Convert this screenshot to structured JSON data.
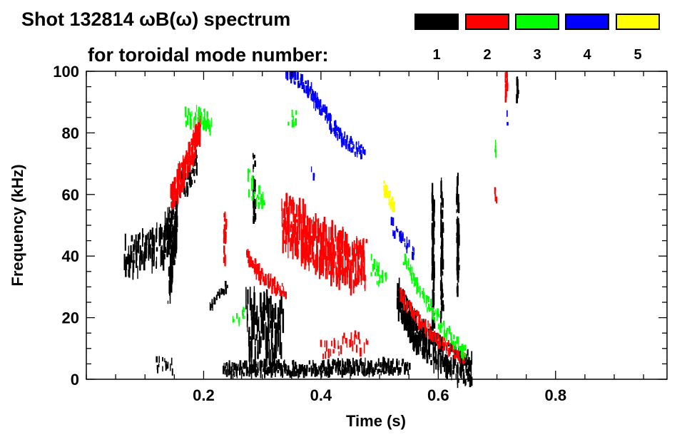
{
  "chart_data": {
    "type": "heatmap",
    "title": "Shot 132814 ωB(ω) spectrum",
    "subtitle": "for toroidal mode number:",
    "xlabel": "Time (s)",
    "ylabel": "Frequency (kHz)",
    "xlim": [
      0,
      0.99
    ],
    "ylim": [
      0,
      100
    ],
    "xticks": [
      0.2,
      0.4,
      0.6,
      0.8
    ],
    "xtick_labels": [
      "0.2",
      "0.4",
      "0.6",
      "0.8"
    ],
    "yticks": [
      0,
      20,
      40,
      60,
      80,
      100
    ],
    "ytick_labels": [
      "0",
      "20",
      "40",
      "60",
      "80",
      "100"
    ],
    "x_minor_step": 0.05,
    "y_minor_step": 5,
    "grid": false,
    "legend_placement": "top-right",
    "legend": [
      {
        "mode": "1",
        "color": "#000000"
      },
      {
        "mode": "2",
        "color": "#ff0000"
      },
      {
        "mode": "3",
        "color": "#00ff00"
      },
      {
        "mode": "4",
        "color": "#0000ff"
      },
      {
        "mode": "5",
        "color": "#ffff00"
      }
    ],
    "features": [
      {
        "mode": 1,
        "path": [
          [
            0.065,
            40
          ],
          [
            0.1,
            41
          ],
          [
            0.13,
            44
          ],
          [
            0.148,
            52
          ]
        ],
        "spread": 6,
        "density": 3
      },
      {
        "mode": 1,
        "path": [
          [
            0.14,
            30
          ],
          [
            0.15,
            45
          ],
          [
            0.152,
            56
          ]
        ],
        "spread": 5,
        "density": 2
      },
      {
        "mode": 1,
        "path": [
          [
            0.16,
            63
          ],
          [
            0.175,
            65
          ],
          [
            0.19,
            70
          ]
        ],
        "spread": 4,
        "density": 2
      },
      {
        "mode": 1,
        "path": [
          [
            0.273,
            17
          ],
          [
            0.3,
            16
          ],
          [
            0.334,
            15
          ]
        ],
        "spread": 10,
        "density": 4
      },
      {
        "mode": 1,
        "path": [
          [
            0.232,
            3
          ],
          [
            0.3,
            3.5
          ],
          [
            0.4,
            3.5
          ],
          [
            0.5,
            4
          ],
          [
            0.55,
            4
          ]
        ],
        "spread": 2,
        "density": 3
      },
      {
        "mode": 1,
        "path": [
          [
            0.53,
            27
          ],
          [
            0.56,
            15
          ],
          [
            0.6,
            8
          ],
          [
            0.656,
            2
          ]
        ],
        "spread": 5,
        "density": 4
      },
      {
        "mode": 1,
        "path": [
          [
            0.285,
            52
          ],
          [
            0.285,
            73
          ]
        ],
        "spread": 2,
        "density": 1
      },
      {
        "mode": 1,
        "path": [
          [
            0.59,
            20
          ],
          [
            0.59,
            60
          ]
        ],
        "spread": 4,
        "density": 1
      },
      {
        "mode": 1,
        "path": [
          [
            0.605,
            22
          ],
          [
            0.605,
            62
          ]
        ],
        "spread": 4,
        "density": 1
      },
      {
        "mode": 1,
        "path": [
          [
            0.632,
            30
          ],
          [
            0.632,
            62
          ]
        ],
        "spread": 4,
        "density": 1
      },
      {
        "mode": 1,
        "path": [
          [
            0.117,
            5
          ],
          [
            0.148,
            4
          ]
        ],
        "spread": 2,
        "density": 1
      },
      {
        "mode": 1,
        "path": [
          [
            0.21,
            24
          ],
          [
            0.24,
            30
          ]
        ],
        "spread": 2,
        "density": 1
      },
      {
        "mode": 1,
        "path": [
          [
            0.733,
            90
          ],
          [
            0.735,
            98
          ]
        ],
        "spread": 3,
        "density": 1
      },
      {
        "mode": 2,
        "path": [
          [
            0.144,
            58
          ],
          [
            0.165,
            68
          ],
          [
            0.18,
            74
          ],
          [
            0.194,
            83
          ]
        ],
        "spread": 4,
        "density": 3
      },
      {
        "mode": 2,
        "path": [
          [
            0.334,
            52
          ],
          [
            0.37,
            47
          ],
          [
            0.41,
            42
          ],
          [
            0.45,
            38
          ],
          [
            0.477,
            38
          ]
        ],
        "spread": 8,
        "density": 5
      },
      {
        "mode": 2,
        "path": [
          [
            0.273,
            40
          ],
          [
            0.3,
            33
          ],
          [
            0.339,
            28
          ]
        ],
        "spread": 2,
        "density": 2
      },
      {
        "mode": 2,
        "path": [
          [
            0.235,
            39
          ],
          [
            0.235,
            54
          ]
        ],
        "spread": 2,
        "density": 1
      },
      {
        "mode": 2,
        "path": [
          [
            0.534,
            27
          ],
          [
            0.57,
            18
          ],
          [
            0.61,
            11
          ],
          [
            0.644,
            7
          ]
        ],
        "spread": 2,
        "density": 2
      },
      {
        "mode": 2,
        "path": [
          [
            0.697,
            59
          ],
          [
            0.697,
            62
          ]
        ],
        "spread": 2,
        "density": 1
      },
      {
        "mode": 2,
        "path": [
          [
            0.715,
            91
          ],
          [
            0.715,
            99
          ]
        ],
        "spread": 2,
        "density": 1
      },
      {
        "mode": 2,
        "path": [
          [
            0.4,
            10
          ],
          [
            0.45,
            12
          ],
          [
            0.48,
            11
          ]
        ],
        "spread": 3,
        "density": 1
      },
      {
        "mode": 3,
        "path": [
          [
            0.168,
            84
          ],
          [
            0.19,
            86
          ],
          [
            0.212,
            82
          ]
        ],
        "spread": 3,
        "density": 2
      },
      {
        "mode": 3,
        "path": [
          [
            0.275,
            64
          ],
          [
            0.29,
            60
          ],
          [
            0.305,
            56
          ]
        ],
        "spread": 4,
        "density": 1
      },
      {
        "mode": 3,
        "path": [
          [
            0.345,
            84
          ],
          [
            0.36,
            85
          ]
        ],
        "spread": 2,
        "density": 1
      },
      {
        "mode": 3,
        "path": [
          [
            0.485,
            37
          ],
          [
            0.513,
            30
          ]
        ],
        "spread": 3,
        "density": 1
      },
      {
        "mode": 3,
        "path": [
          [
            0.538,
            40
          ],
          [
            0.57,
            28
          ],
          [
            0.61,
            16
          ],
          [
            0.65,
            7
          ]
        ],
        "spread": 2,
        "density": 1
      },
      {
        "mode": 3,
        "path": [
          [
            0.696,
            75
          ]
        ],
        "spread": 2,
        "density": 1
      },
      {
        "mode": 3,
        "path": [
          [
            0.25,
            18
          ],
          [
            0.27,
            22
          ]
        ],
        "spread": 2,
        "density": 1
      },
      {
        "mode": 4,
        "path": [
          [
            0.34,
            100
          ],
          [
            0.375,
            95
          ],
          [
            0.41,
            85
          ],
          [
            0.44,
            77
          ],
          [
            0.477,
            73
          ]
        ],
        "spread": 2,
        "density": 2
      },
      {
        "mode": 4,
        "path": [
          [
            0.383,
            68
          ],
          [
            0.39,
            67
          ]
        ],
        "spread": 2,
        "density": 1
      },
      {
        "mode": 4,
        "path": [
          [
            0.715,
            84
          ]
        ],
        "spread": 3,
        "density": 1
      },
      {
        "mode": 4,
        "path": [
          [
            0.52,
            50
          ],
          [
            0.54,
            45
          ],
          [
            0.56,
            40
          ]
        ],
        "spread": 2,
        "density": 1
      },
      {
        "mode": 5,
        "path": [
          [
            0.505,
            62
          ],
          [
            0.526,
            55
          ]
        ],
        "spread": 2,
        "density": 2
      }
    ]
  }
}
